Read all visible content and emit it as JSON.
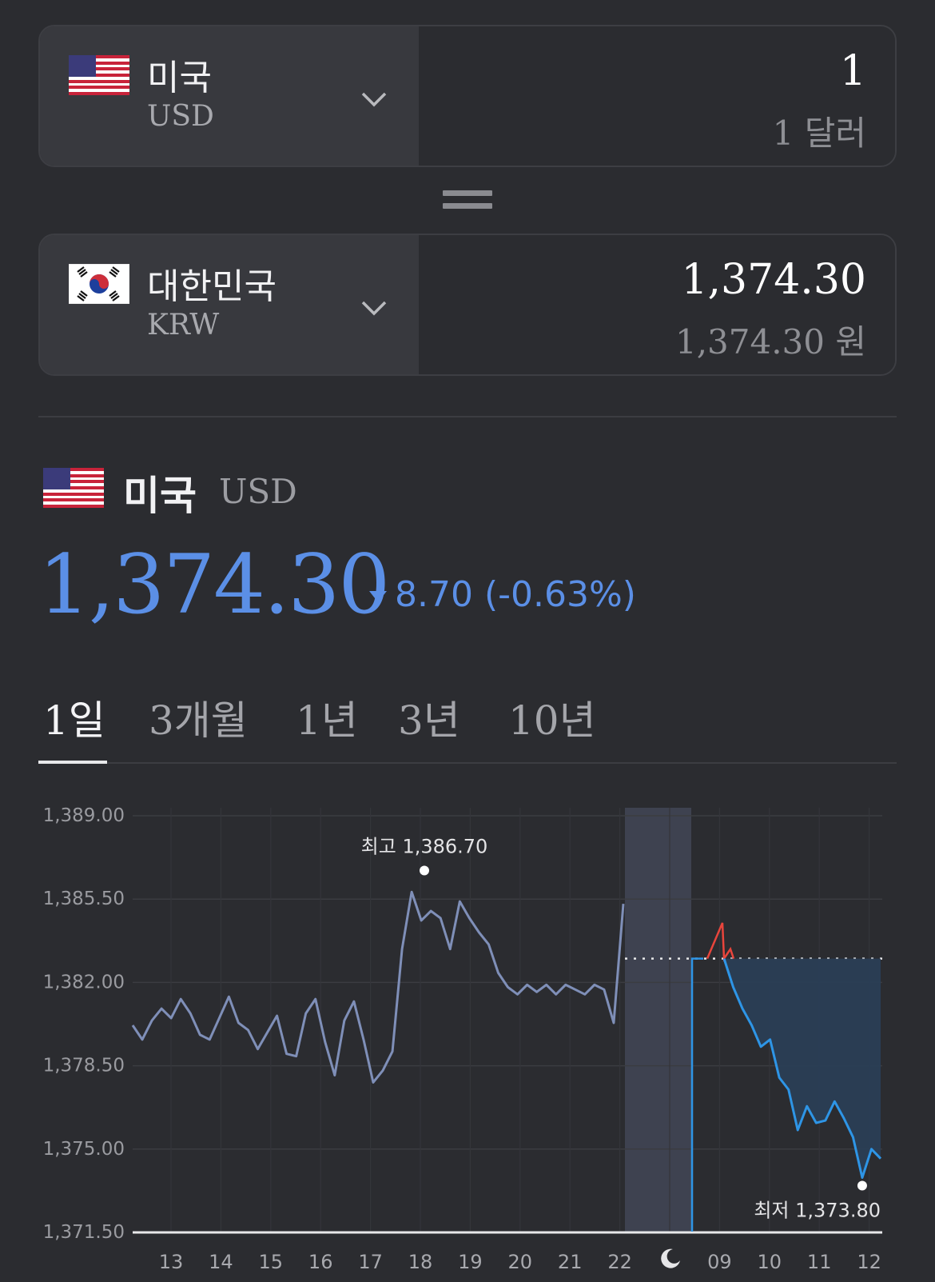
{
  "converter": {
    "from": {
      "name": "미국",
      "code": "USD",
      "amount": "1",
      "amount_words": "1 달러",
      "flag": "us-flag"
    },
    "to": {
      "name": "대한민국",
      "code": "KRW",
      "amount": "1,374.30",
      "amount_words": "1,374.30 원",
      "flag": "kr-flag"
    }
  },
  "info": {
    "name": "미국",
    "code": "USD",
    "rate": "1,374.30",
    "change": "8.70 (-0.63%)",
    "direction": "down"
  },
  "tabs": [
    {
      "label": "1일",
      "active": true
    },
    {
      "label": "3개월",
      "active": false
    },
    {
      "label": "1년",
      "active": false
    },
    {
      "label": "3년",
      "active": false
    },
    {
      "label": "10년",
      "active": false
    }
  ],
  "chart_data": {
    "type": "line",
    "y_ticks": [
      "1,389.00",
      "1,385.50",
      "1,382.00",
      "1,378.50",
      "1,375.00",
      "1,371.50"
    ],
    "ylim": [
      1371.5,
      1389.0
    ],
    "x_ticks": [
      "13",
      "14",
      "15",
      "16",
      "17",
      "18",
      "19",
      "20",
      "21",
      "22",
      "moon-icon",
      "09",
      "10",
      "11",
      "12"
    ],
    "high_label": "최고 1,386.70",
    "low_label": "최저 1,373.80",
    "previous_close": 1383.0,
    "colors": {
      "history": "#7f8fb8",
      "today": "#2e95e6",
      "spike": "#e8453c",
      "fill": "#2a3e55",
      "night": "#3e4250"
    },
    "series": [
      {
        "values": [
          1380.2,
          1379.6,
          1380.4,
          1380.9,
          1380.5,
          1381.3,
          1380.7,
          1379.8,
          1379.6,
          1380.5,
          1381.4,
          1380.3,
          1380.0,
          1379.2,
          1379.9,
          1380.6,
          1379.0,
          1378.9,
          1380.7,
          1381.3,
          1379.5,
          1378.1,
          1380.4,
          1381.2,
          1379.6,
          1377.8,
          1378.3,
          1379.1,
          1383.4,
          1385.8,
          1384.6,
          1385.0,
          1384.7,
          1383.4,
          1385.4,
          1384.7,
          1384.1,
          1383.6,
          1382.4,
          1381.8,
          1381.5,
          1381.9,
          1381.6,
          1381.9,
          1381.5,
          1381.9,
          1381.7,
          1381.5,
          1381.9,
          1381.7,
          1380.3,
          1385.3
        ]
      },
      {
        "values": [
          1383.0,
          1381.8,
          1380.9,
          1380.2,
          1379.3,
          1379.6,
          1378.0,
          1377.5,
          1375.8,
          1376.8,
          1376.1,
          1376.2,
          1377.0,
          1376.3,
          1375.5,
          1373.8,
          1375.0,
          1374.6
        ]
      }
    ]
  }
}
